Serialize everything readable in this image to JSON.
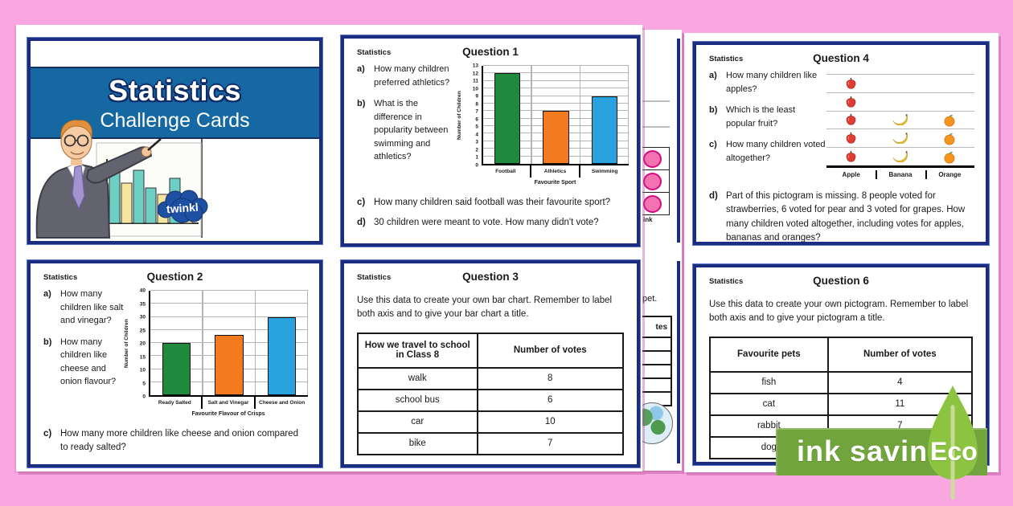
{
  "title_card": {
    "title": "Statistics",
    "subtitle": "Challenge Cards",
    "logo_text": "twinkl"
  },
  "cards": {
    "q1": {
      "label": "Statistics",
      "title": "Question 1",
      "side_questions": [
        {
          "key": "a)",
          "text": "How many children preferred athletics?"
        },
        {
          "key": "b)",
          "text": "What is the difference in popularity between swimming and athletics?"
        }
      ],
      "full_questions": [
        {
          "key": "c)",
          "text": "How many children said football was their favourite sport?"
        },
        {
          "key": "d)",
          "text": "30 children were meant to vote. How many didn't vote?"
        }
      ]
    },
    "q2": {
      "label": "Statistics",
      "title": "Question 2",
      "side_questions": [
        {
          "key": "a)",
          "text": "How many children like salt and vinegar?"
        },
        {
          "key": "b)",
          "text": "How many children like cheese and onion flavour?"
        }
      ],
      "full_questions": [
        {
          "key": "c)",
          "text": "How many more children like cheese and onion compared to ready salted?"
        }
      ]
    },
    "q3": {
      "label": "Statistics",
      "title": "Question 3",
      "intro": "Use this data to create your own bar chart. Remember to label both axis and to give your bar chart a title."
    },
    "q4": {
      "label": "Statistics",
      "title": "Question 4",
      "side_questions": [
        {
          "key": "a)",
          "text": "How many children like apples?"
        },
        {
          "key": "b)",
          "text": "Which is the least popular fruit?"
        },
        {
          "key": "c)",
          "text": "How many children voted altogether?"
        }
      ],
      "full_questions": [
        {
          "key": "d)",
          "text": "Part of this pictogram is missing. 8 people voted for strawberries, 6 voted for pear and 3 voted for grapes. How many children voted altogether, including votes for apples, bananas and oranges?"
        }
      ]
    },
    "q6": {
      "label": "Statistics",
      "title": "Question 6",
      "intro": "Use this data to create your own pictogram. Remember to label both axis and to give your pictogram a title."
    }
  },
  "chart_data": [
    {
      "id": "q1_chart",
      "type": "bar",
      "categories": [
        "Football",
        "Athletics",
        "Swimming"
      ],
      "values": [
        12,
        7,
        9
      ],
      "colors": [
        "#1f8a3d",
        "#f47a1f",
        "#29a3e0"
      ],
      "xlabel": "Favourite Sport",
      "ylabel": "Number of Children",
      "ylim": [
        0,
        13
      ],
      "ytick_step": 1,
      "grid": true,
      "legend": "none"
    },
    {
      "id": "q2_chart",
      "type": "bar",
      "categories": [
        "Ready Salted",
        "Salt and Vinegar",
        "Cheese and Onion"
      ],
      "values": [
        20,
        23,
        30
      ],
      "colors": [
        "#1f8a3d",
        "#f47a1f",
        "#29a3e0"
      ],
      "xlabel": "Favourite Flavour of Crisps",
      "ylabel": "Number of Children",
      "ylim": [
        0,
        40
      ],
      "ytick_step": 5,
      "grid": true,
      "legend": "none"
    },
    {
      "id": "q4_pictogram",
      "type": "pictogram",
      "categories": [
        "Apple",
        "Banana",
        "Orange"
      ],
      "values": [
        5,
        3,
        3
      ],
      "icons": [
        "apple",
        "banana",
        "orange"
      ],
      "rows": 5
    },
    {
      "id": "q3_table",
      "type": "table",
      "headers": [
        "How we travel to school in Class 8",
        "Number of votes"
      ],
      "rows": [
        [
          "walk",
          "8"
        ],
        [
          "school bus",
          "6"
        ],
        [
          "car",
          "10"
        ],
        [
          "bike",
          "7"
        ]
      ]
    },
    {
      "id": "q6_table",
      "type": "table",
      "headers": [
        "Favourite pets",
        "Number of votes"
      ],
      "rows": [
        [
          "fish",
          "4"
        ],
        [
          "cat",
          "11"
        ],
        [
          "rabbit",
          "7"
        ],
        [
          "dog",
          ""
        ]
      ]
    }
  ],
  "hidden_cards": {
    "top_fragment": {
      "label_fragment": "ink",
      "circle_count": 3
    },
    "bottom_fragment": {
      "text_fragment": "pet.",
      "header_fragment": "tes",
      "empty_rows": 5
    }
  },
  "eco_badge": {
    "banner_text": "ink saving",
    "leaf_text": "Eco",
    "banner_color": "#71a43c",
    "leaf_color": "#8cc341"
  }
}
